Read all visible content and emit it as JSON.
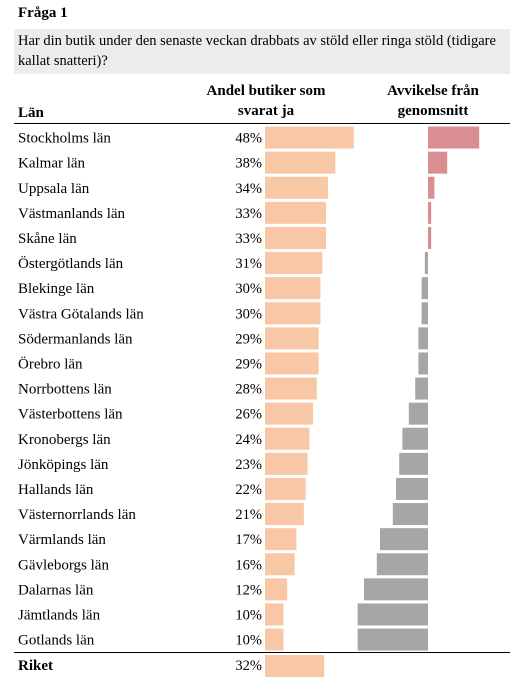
{
  "question": {
    "title": "Fråga 1",
    "text": "Har din butik under den senaste veckan drabbats av stöld eller ringa stöld (tidigare kallat snatteri)?"
  },
  "headers": {
    "lan": "Län",
    "andel": "Andel butiker som svarat ja",
    "avvikelse": "Avvikelse från genomsnitt"
  },
  "colors": {
    "share_bar": "#f8c8a6",
    "deviation_positive": "#d98f91",
    "deviation_negative": "#a6a6a6"
  },
  "chart_data": {
    "type": "bar",
    "orientation": "horizontal",
    "categories": [
      "Stockholms län",
      "Kalmar län",
      "Uppsala län",
      "Västmanlands län",
      "Skåne län",
      "Östergötlands län",
      "Blekinge län",
      "Västra Götalands län",
      "Södermanlands län",
      "Örebro län",
      "Norrbottens län",
      "Västerbottens län",
      "Kronobergs län",
      "Jönköpings län",
      "Hallands län",
      "Västernorrlands län",
      "Värmlands län",
      "Gävleborgs län",
      "Dalarnas län",
      "Jämtlands län",
      "Gotlands län"
    ],
    "values": [
      48,
      38,
      34,
      33,
      33,
      31,
      30,
      30,
      29,
      29,
      28,
      26,
      24,
      23,
      22,
      21,
      17,
      16,
      12,
      10,
      10
    ],
    "labels": [
      "48%",
      "38%",
      "34%",
      "33%",
      "33%",
      "31%",
      "30%",
      "30%",
      "29%",
      "29%",
      "28%",
      "26%",
      "24%",
      "23%",
      "22%",
      "21%",
      "17%",
      "16%",
      "12%",
      "10%",
      "10%"
    ],
    "deviation": [
      16,
      6,
      2,
      1,
      1,
      -1,
      -2,
      -2,
      -3,
      -3,
      -4,
      -6,
      -8,
      -9,
      -10,
      -11,
      -15,
      -16,
      -20,
      -22,
      -22
    ],
    "total": {
      "label": "Riket",
      "value": 32,
      "value_label": "32%"
    },
    "unit": "%"
  }
}
